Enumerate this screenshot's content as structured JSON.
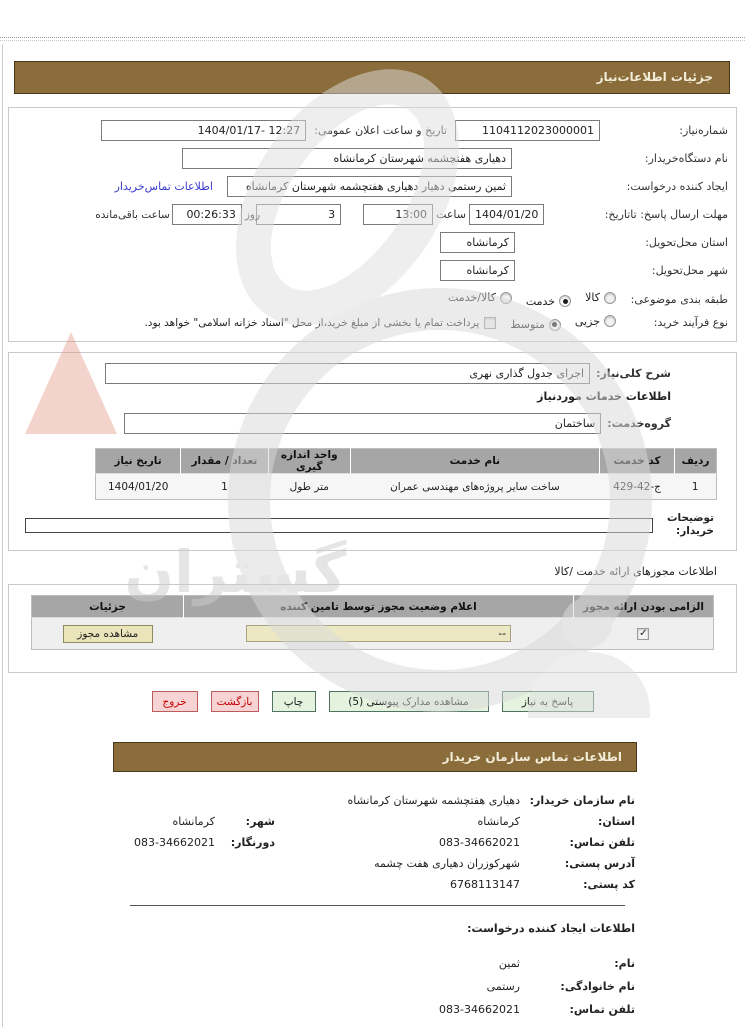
{
  "titlebar": {
    "details": "جزئیات اطلاعات‌نیاز",
    "contact": "اطلاعات تماس سازمان خریدار"
  },
  "fields": {
    "need_number": {
      "label": "شماره‌نیاز:",
      "value": "1104112023000001"
    },
    "announce_datetime": {
      "label": "تاریخ و ساعت اعلان عمومی:",
      "value": "1404/01/17- 12:27"
    },
    "buyer_org": {
      "label": "نام دستگاه‌خریدار:",
      "value": "دهیاری هفتچشمه شهرستان کرمانشاه"
    },
    "request_creator": {
      "label": "ایجاد کننده درخواست:",
      "value": "ثمین رستمی دهیار دهیاری هفتچشمه شهرستان کرمانشاه",
      "contact_link": "اطلاعات تماس‌خریدار"
    },
    "reply_deadline": {
      "label": "مهلت ارسال پاسخ: تاتاریخ:",
      "date": "1404/01/20",
      "hour_label": "ساعت",
      "time": "13:00",
      "days": "3",
      "days_label": "روز",
      "remaining_label": "ساعت باقی‌مانده",
      "remaining": "00:26:33"
    },
    "delivery_province": {
      "label": "استان محل‌تحویل:",
      "value": "کرمانشاه"
    },
    "delivery_city": {
      "label": "شهر محل‌تحویل:",
      "value": "کرمانشاه"
    },
    "subject_class": {
      "label": "طبقه بندی موضوعی:",
      "options": [
        "کالا",
        "خدمت",
        "کالا/خدمت"
      ],
      "selected": "خدمت"
    },
    "purchase_process": {
      "label": "نوع فرآیند خرید:",
      "options": [
        "جزیی",
        "متوسط"
      ],
      "selected": "متوسط",
      "checkbox_checked": false,
      "checkbox_label": "پرداخت تمام یا بخشی از مبلغ خرید،از محل \"اسناد خزانه اسلامی\" خواهد بود."
    }
  },
  "need_desc": {
    "label": "شرح کلی‌نیاز:",
    "value": "اجرای جدول گذاری نهری"
  },
  "services": {
    "section_title": "اطلاعات خدمات موردنیاز",
    "group_label": "گروه‌خدمت:",
    "group_value": "ساختمان"
  },
  "services_table": {
    "headers": [
      "ردیف",
      "کد خدمت",
      "نام خدمت",
      "واحد اندازه گیری",
      "تعداد / مقدار",
      "تاریخ نیاز"
    ],
    "rows": [
      [
        "1",
        "ج-42-429",
        "ساخت سایر پروژه‌های مهندسی عمران",
        "متر طول",
        "1",
        "1404/01/20"
      ]
    ]
  },
  "buyer_notes": {
    "label": "توضیحات خریدار:",
    "value": ""
  },
  "license": {
    "section_title": "اطلاعات مجوزهای ارائه خدمت /کالا",
    "headers": [
      "الزامی بودن ارائه مجوز",
      "اعلام وضعیت مجوز توسط تامین کننده",
      "جزئیات"
    ],
    "required_checked": true,
    "status_value": "--",
    "details_button": "مشاهده مجوز"
  },
  "actions": {
    "respond": "پاسخ به نیاز",
    "attachments": "مشاهده مدارک پیوستی (5)",
    "print": "چاپ",
    "back": "بازگشت",
    "exit": "خروج"
  },
  "contact": {
    "org_label": "نام سازمان خریدار:",
    "org_value": "دهیاری هفتچشمه شهرستان کرمانشاه",
    "province_label": "استان:",
    "province_value": "کرمانشاه",
    "city_label": "شهر:",
    "city_value": "کرمانشاه",
    "phone_label": "تلفن تماس:",
    "phone_value": "083-34662021",
    "fax_label": "دورنگار:",
    "fax_value": "083-34662021",
    "address_label": "آدرس پستی:",
    "address_value": "شهرکوزران دهیاری هفت چشمه",
    "postal_label": "کد پستی:",
    "postal_value": "6768113147"
  },
  "creator": {
    "section_title": "اطلاعات ایجاد کننده درخواست:",
    "name_label": "نام:",
    "name_value": "ثمین",
    "family_label": "نام خانوادگی:",
    "family_value": "رستمی",
    "phone_label": "تلفن تماس:",
    "phone_value": "083-34662021"
  },
  "watermark": {
    "text": "گستران"
  },
  "colors": {
    "header_bg": "#8a6d3b",
    "link": "#3a3ad0",
    "table_header_bg": "#a6a6a6",
    "khaki_bg": "#ece8c3",
    "green_button_bg": "#e4f2de",
    "pink_button_bg": "#f7d3d3"
  }
}
